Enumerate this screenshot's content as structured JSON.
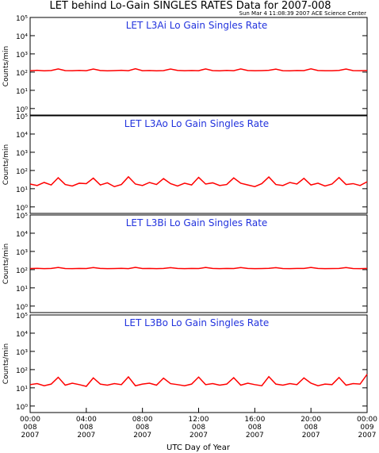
{
  "title": "LET behind Lo-Gain SINGLES RATES Data for 2007-008",
  "subtitle": "Sun Mar  4 11:08:39 2007 ACE Science Center",
  "x_label": "UTC Day of Year",
  "chart_data": [
    {
      "type": "line",
      "title": "LET L3Ai Lo Gain Singles Rate",
      "y_label": "Counts/min",
      "log_y": true,
      "xlim": [
        0,
        24
      ],
      "ylim": [
        0.44,
        100000
      ],
      "yticks": [
        {
          "value": 1,
          "label": "10⁰"
        },
        {
          "value": 10,
          "label": "10¹"
        },
        {
          "value": 100,
          "label": "10²"
        },
        {
          "value": 1000,
          "label": "10³"
        },
        {
          "value": 10000,
          "label": "10⁴"
        },
        {
          "value": 100000,
          "label": "10⁵"
        }
      ],
      "x": [
        0,
        0.5,
        1,
        1.5,
        2,
        2.5,
        3,
        3.5,
        4,
        4.5,
        5,
        5.5,
        6,
        6.5,
        7,
        7.5,
        8,
        8.5,
        9,
        9.5,
        10,
        10.5,
        11,
        11.5,
        12,
        12.5,
        13,
        13.5,
        14,
        14.5,
        15,
        15.5,
        16,
        16.5,
        17,
        17.5,
        18,
        18.5,
        19,
        19.5,
        20,
        20.5,
        21,
        21.5,
        22,
        22.5,
        23,
        23.5,
        24
      ],
      "series": [
        {
          "color": "#ff0000",
          "values": [
            120,
            125,
            118,
            122,
            150,
            121,
            119,
            124,
            120,
            148,
            122,
            118,
            121,
            125,
            119,
            152,
            120,
            123,
            118,
            121,
            147,
            124,
            119,
            122,
            120,
            150,
            121,
            118,
            124,
            120,
            149,
            122,
            119,
            121,
            125,
            146,
            120,
            118,
            123,
            121,
            151,
            122,
            119,
            120,
            124,
            148,
            121,
            120,
            122
          ]
        }
      ]
    },
    {
      "type": "line",
      "title": "LET L3Ao Lo Gain Singles Rate",
      "y_label": "Counts/min",
      "log_y": true,
      "xlim": [
        0,
        24
      ],
      "ylim": [
        0.44,
        100000
      ],
      "yticks": [
        {
          "value": 1,
          "label": "10⁰"
        },
        {
          "value": 10,
          "label": "10¹"
        },
        {
          "value": 100,
          "label": "10²"
        },
        {
          "value": 1000,
          "label": "10³"
        },
        {
          "value": 10000,
          "label": "10⁴"
        },
        {
          "value": 100000,
          "label": "10⁵"
        }
      ],
      "x": [
        0,
        0.5,
        1,
        1.5,
        2,
        2.5,
        3,
        3.5,
        4,
        4.5,
        5,
        5.5,
        6,
        6.5,
        7,
        7.5,
        8,
        8.5,
        9,
        9.5,
        10,
        10.5,
        11,
        11.5,
        12,
        12.5,
        13,
        13.5,
        14,
        14.5,
        15,
        15.5,
        16,
        16.5,
        17,
        17.5,
        18,
        18.5,
        19,
        19.5,
        20,
        20.5,
        21,
        21.5,
        22,
        22.5,
        23,
        23.5,
        24
      ],
      "series": [
        {
          "color": "#ff0000",
          "values": [
            18,
            15,
            22,
            16,
            40,
            17,
            14,
            20,
            19,
            38,
            16,
            21,
            13,
            17,
            45,
            18,
            15,
            22,
            17,
            36,
            19,
            14,
            20,
            16,
            42,
            18,
            21,
            15,
            17,
            39,
            20,
            16,
            13,
            19,
            44,
            17,
            15,
            22,
            18,
            37,
            16,
            20,
            14,
            18,
            41,
            17,
            19,
            15,
            24
          ]
        }
      ]
    },
    {
      "type": "line",
      "title": "LET L3Bi Lo Gain Singles Rate",
      "y_label": "Counts/min",
      "log_y": true,
      "xlim": [
        0,
        24
      ],
      "ylim": [
        0.44,
        100000
      ],
      "yticks": [
        {
          "value": 1,
          "label": "10⁰"
        },
        {
          "value": 10,
          "label": "10¹"
        },
        {
          "value": 100,
          "label": "10²"
        },
        {
          "value": 1000,
          "label": "10³"
        },
        {
          "value": 10000,
          "label": "10⁴"
        },
        {
          "value": 100000,
          "label": "10⁵"
        }
      ],
      "x": [
        0,
        0.5,
        1,
        1.5,
        2,
        2.5,
        3,
        3.5,
        4,
        4.5,
        5,
        5.5,
        6,
        6.5,
        7,
        7.5,
        8,
        8.5,
        9,
        9.5,
        10,
        10.5,
        11,
        11.5,
        12,
        12.5,
        13,
        13.5,
        14,
        14.5,
        15,
        15.5,
        16,
        16.5,
        17,
        17.5,
        18,
        18.5,
        19,
        19.5,
        20,
        20.5,
        21,
        21.5,
        22,
        22.5,
        23,
        23.5,
        24
      ],
      "series": [
        {
          "color": "#ff0000",
          "values": [
            115,
            118,
            113,
            116,
            132,
            115,
            114,
            117,
            115,
            130,
            116,
            113,
            115,
            118,
            114,
            133,
            115,
            117,
            113,
            116,
            129,
            117,
            114,
            116,
            115,
            131,
            116,
            113,
            117,
            115,
            130,
            116,
            114,
            115,
            118,
            128,
            115,
            113,
            117,
            116,
            132,
            116,
            114,
            115,
            117,
            130,
            115,
            114,
            116
          ]
        }
      ]
    },
    {
      "type": "line",
      "title": "LET L3Bo Lo Gain Singles Rate",
      "y_label": "Counts/min",
      "log_y": true,
      "xlim": [
        0,
        24
      ],
      "ylim": [
        0.44,
        100000
      ],
      "yticks": [
        {
          "value": 1,
          "label": "10⁰"
        },
        {
          "value": 10,
          "label": "10¹"
        },
        {
          "value": 100,
          "label": "10²"
        },
        {
          "value": 1000,
          "label": "10³"
        },
        {
          "value": 10000,
          "label": "10⁴"
        },
        {
          "value": 100000,
          "label": "10⁵"
        }
      ],
      "xticks": [
        {
          "value": 0,
          "label": [
            "00:00",
            "008",
            "2007"
          ]
        },
        {
          "value": 4,
          "label": [
            "04:00",
            "008",
            "2007"
          ]
        },
        {
          "value": 8,
          "label": [
            "08:00",
            "008",
            "2007"
          ]
        },
        {
          "value": 12,
          "label": [
            "12:00",
            "008",
            "2007"
          ]
        },
        {
          "value": 16,
          "label": [
            "16:00",
            "008",
            "2007"
          ]
        },
        {
          "value": 20,
          "label": [
            "20:00",
            "008",
            "2007"
          ]
        },
        {
          "value": 24,
          "label": [
            "00:00",
            "009",
            "2007"
          ]
        }
      ],
      "x": [
        0,
        0.5,
        1,
        1.5,
        2,
        2.5,
        3,
        3.5,
        4,
        4.5,
        5,
        5.5,
        6,
        6.5,
        7,
        7.5,
        8,
        8.5,
        9,
        9.5,
        10,
        10.5,
        11,
        11.5,
        12,
        12.5,
        13,
        13.5,
        14,
        14.5,
        15,
        15.5,
        16,
        16.5,
        17,
        17.5,
        18,
        18.5,
        19,
        19.5,
        20,
        20.5,
        21,
        21.5,
        22,
        22.5,
        23,
        23.5,
        24
      ],
      "series": [
        {
          "color": "#ff0000",
          "values": [
            15,
            17,
            13,
            16,
            38,
            14,
            18,
            15,
            12,
            35,
            16,
            14,
            17,
            15,
            40,
            13,
            16,
            18,
            14,
            34,
            17,
            15,
            13,
            16,
            39,
            15,
            17,
            14,
            16,
            36,
            14,
            18,
            15,
            13,
            41,
            16,
            14,
            17,
            15,
            35,
            18,
            13,
            16,
            15,
            37,
            14,
            17,
            16,
            55
          ]
        }
      ]
    }
  ]
}
